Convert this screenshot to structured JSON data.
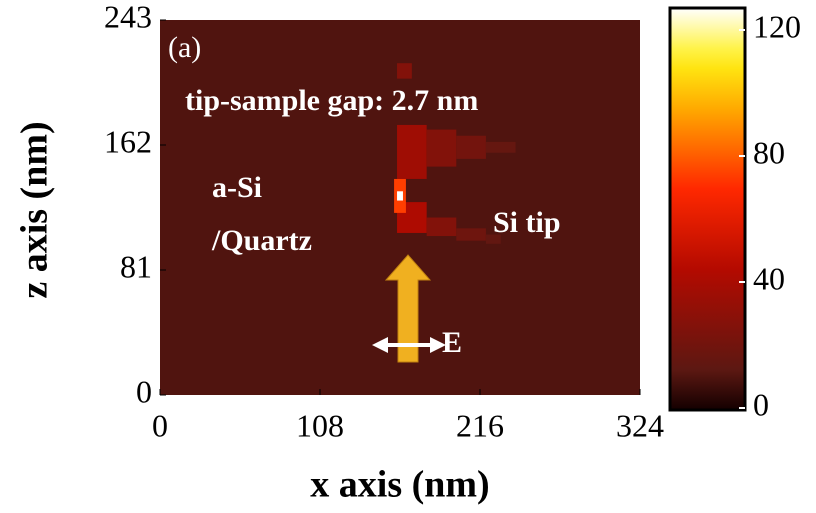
{
  "chart_data": {
    "type": "heatmap",
    "xlabel": "x axis (nm)",
    "ylabel": "z axis (nm)",
    "xlim": [
      0,
      324
    ],
    "xticks": [
      0,
      108,
      216,
      324
    ],
    "ylim": [
      0,
      243
    ],
    "yticks": [
      0,
      81,
      162,
      243
    ],
    "clim": [
      0,
      120
    ],
    "cticks": [
      0,
      40,
      80,
      120
    ],
    "background_value": 10,
    "cells": [
      {
        "x": [
          160,
          180
        ],
        "z": [
          140,
          175
        ],
        "value": 35
      },
      {
        "x": [
          180,
          200
        ],
        "z": [
          148,
          172
        ],
        "value": 25
      },
      {
        "x": [
          200,
          220
        ],
        "z": [
          153,
          168
        ],
        "value": 20
      },
      {
        "x": [
          220,
          240
        ],
        "z": [
          157,
          164
        ],
        "value": 15
      },
      {
        "x": [
          160,
          180
        ],
        "z": [
          105,
          125
        ],
        "value": 40
      },
      {
        "x": [
          180,
          200
        ],
        "z": [
          103,
          115
        ],
        "value": 25
      },
      {
        "x": [
          200,
          220
        ],
        "z": [
          100,
          108
        ],
        "value": 18
      },
      {
        "x": [
          220,
          230
        ],
        "z": [
          98,
          104
        ],
        "value": 14
      },
      {
        "x": [
          160,
          170
        ],
        "z": [
          205,
          215
        ],
        "value": 25
      },
      {
        "x": [
          158,
          166
        ],
        "z": [
          118,
          140
        ],
        "value": 70
      },
      {
        "x": [
          160,
          164
        ],
        "z": [
          126,
          132
        ],
        "value": 120
      }
    ],
    "annotations": [
      "(a)",
      "tip-sample gap: 2.7 nm",
      "a-Si",
      "/Quartz",
      "Si tip",
      "E"
    ]
  }
}
